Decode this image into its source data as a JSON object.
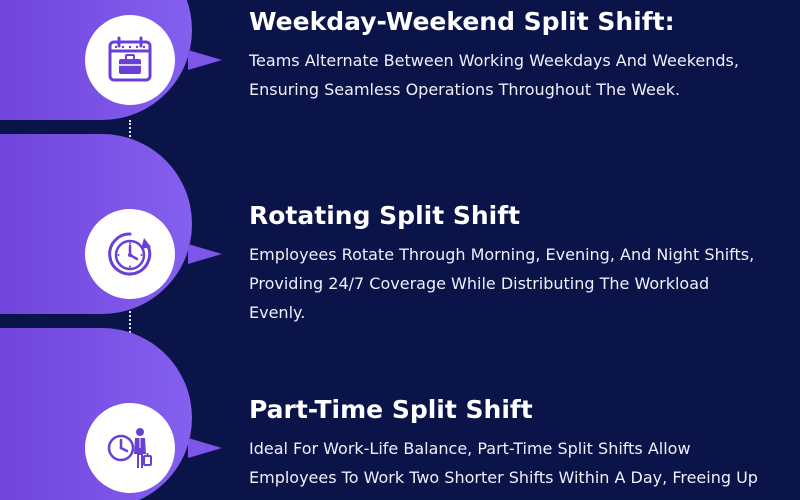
{
  "colors": {
    "background": "#0b1448",
    "accent": "#7b52e6",
    "icon": "#6a3fd6",
    "text": "#ffffff"
  },
  "items": [
    {
      "icon": "calendar-briefcase-icon",
      "title": "Weekday-Weekend Split Shift:",
      "description": "Teams Alternate Between Working Weekdays And Weekends, Ensuring Seamless Operations Throughout The Week."
    },
    {
      "icon": "rotating-clock-icon",
      "title": "Rotating Split Shift",
      "description": "Employees Rotate Through Morning, Evening, And Night Shifts, Providing 24/7 Coverage While Distributing The Workload Evenly."
    },
    {
      "icon": "clock-person-icon",
      "title": "Part-Time Split Shift",
      "description": "Ideal For Work-Life Balance, Part-Time Split Shifts Allow Employees To Work Two Shorter Shifts Within A Day, Freeing Up Time For Other Commitments."
    }
  ]
}
